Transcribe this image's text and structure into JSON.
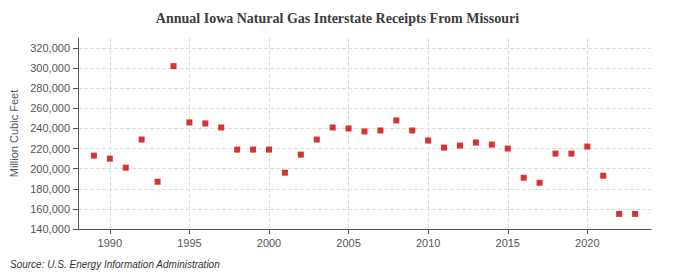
{
  "chart_data": {
    "type": "scatter",
    "title": "Annual Iowa Natural Gas Interstate Receipts From Missouri",
    "ylabel": "Million Cubic Feet",
    "source": "Source: U.S. Energy Information Administration",
    "x": [
      1989,
      1990,
      1991,
      1992,
      1993,
      1994,
      1995,
      1996,
      1997,
      1998,
      1999,
      2000,
      2001,
      2002,
      2003,
      2004,
      2005,
      2006,
      2007,
      2008,
      2009,
      2010,
      2011,
      2012,
      2013,
      2014,
      2015,
      2016,
      2017,
      2018,
      2019,
      2020,
      2021,
      2022,
      2023
    ],
    "values": [
      213000,
      210000,
      201000,
      229000,
      187000,
      302000,
      246000,
      245000,
      241000,
      219000,
      219000,
      219000,
      196000,
      214000,
      229000,
      241000,
      240000,
      237000,
      238000,
      248000,
      238000,
      228000,
      221000,
      223000,
      226000,
      224000,
      220000,
      191000,
      186000,
      215000,
      215000,
      222000,
      193000,
      155000,
      155000
    ],
    "color": "#cc0000",
    "marker": "square",
    "xlim": [
      1988,
      2024
    ],
    "xticks": [
      1990,
      1995,
      2000,
      2005,
      2010,
      2015,
      2020
    ],
    "ylim": [
      140000,
      330000
    ],
    "yticks": [
      {
        "value": 140000,
        "label": "140,000"
      },
      {
        "value": 160000,
        "label": "160,000"
      },
      {
        "value": 180000,
        "label": "180,000"
      },
      {
        "value": 200000,
        "label": "200,000"
      },
      {
        "value": 220000,
        "label": "220,000"
      },
      {
        "value": 240000,
        "label": "240,000"
      },
      {
        "value": 260000,
        "label": "260,000"
      },
      {
        "value": 280000,
        "label": "280,000"
      },
      {
        "value": 300000,
        "label": "300,000"
      },
      {
        "value": 320000,
        "label": "320,000"
      }
    ],
    "grid": true
  }
}
